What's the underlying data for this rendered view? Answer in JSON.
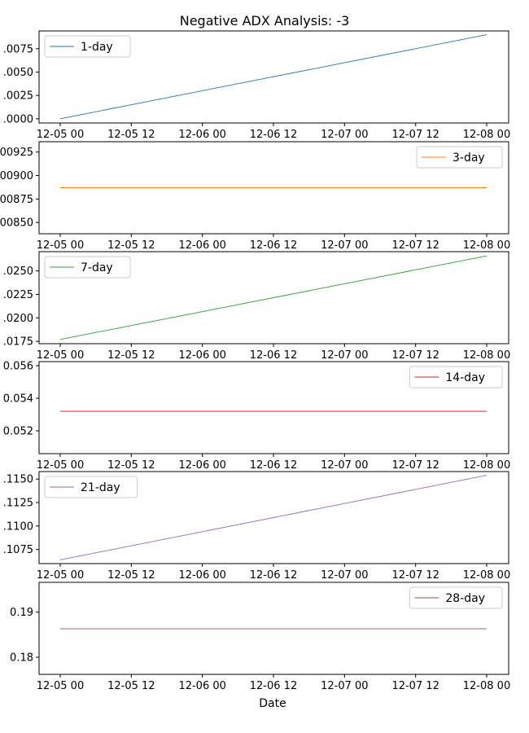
{
  "chart_data": {
    "type": "line",
    "title": "Negative ADX Analysis: -3",
    "xlabel": "Date",
    "x_ticks": [
      "12-05 00",
      "12-05 12",
      "12-06 00",
      "12-06 12",
      "12-07 00",
      "12-07 12",
      "12-08 00"
    ],
    "x_range": [
      "12-05 00",
      "12-08 00"
    ],
    "legend_placement": "auto",
    "subplots": [
      {
        "series": {
          "name": "1-day",
          "color": "#1f77b4",
          "values": [
            0.0,
            0.009
          ]
        },
        "legend_loc": "upper-left",
        "ylim": [
          -0.00045,
          0.0094
        ],
        "yticks": [
          {
            "v": 0.0,
            "label": ".0000"
          },
          {
            "v": 0.0025,
            "label": ".0025"
          },
          {
            "v": 0.005,
            "label": ".0050"
          },
          {
            "v": 0.0075,
            "label": ".0075"
          }
        ]
      },
      {
        "series": {
          "name": "3-day",
          "color": "#ff7f0e",
          "values": [
            0.00887,
            0.00887
          ]
        },
        "legend_loc": "upper-right",
        "ylim": [
          0.00838,
          0.00936
        ],
        "yticks": [
          {
            "v": 0.0085,
            "label": ".00850"
          },
          {
            "v": 0.00875,
            "label": ".00875"
          },
          {
            "v": 0.009,
            "label": ".00900"
          },
          {
            "v": 0.00925,
            "label": ".00925"
          }
        ]
      },
      {
        "series": {
          "name": "7-day",
          "color": "#2ca02c",
          "values": [
            0.0177,
            0.0266
          ]
        },
        "legend_loc": "upper-left",
        "ylim": [
          0.01725,
          0.02705
        ],
        "yticks": [
          {
            "v": 0.0175,
            "label": ".0175"
          },
          {
            "v": 0.02,
            "label": ".0200"
          },
          {
            "v": 0.0225,
            "label": ".0225"
          },
          {
            "v": 0.025,
            "label": ".0250"
          }
        ]
      },
      {
        "series": {
          "name": "14-day",
          "color": "#d62728",
          "values": [
            0.0532,
            0.0532
          ]
        },
        "legend_loc": "upper-right",
        "ylim": [
          0.0506,
          0.05625
        ],
        "yticks": [
          {
            "v": 0.052,
            "label": "0.052"
          },
          {
            "v": 0.054,
            "label": "0.054"
          },
          {
            "v": 0.056,
            "label": "0.056"
          }
        ]
      },
      {
        "series": {
          "name": "21-day",
          "color": "#9467bd",
          "values": [
            0.1064,
            0.1154
          ]
        },
        "legend_loc": "upper-left",
        "ylim": [
          0.106,
          0.1158
        ],
        "yticks": [
          {
            "v": 0.1075,
            "label": ".1075"
          },
          {
            "v": 0.11,
            "label": ".1100"
          },
          {
            "v": 0.1125,
            "label": ".1125"
          },
          {
            "v": 0.115,
            "label": ".1150"
          }
        ]
      },
      {
        "series": {
          "name": "28-day",
          "color": "#8c564b",
          "values": [
            0.1863,
            0.1863
          ]
        },
        "legend_loc": "upper-right",
        "ylim": [
          0.1762,
          0.1966
        ],
        "yticks": [
          {
            "v": 0.18,
            "label": "0.18"
          },
          {
            "v": 0.19,
            "label": "0.19"
          }
        ]
      }
    ]
  }
}
